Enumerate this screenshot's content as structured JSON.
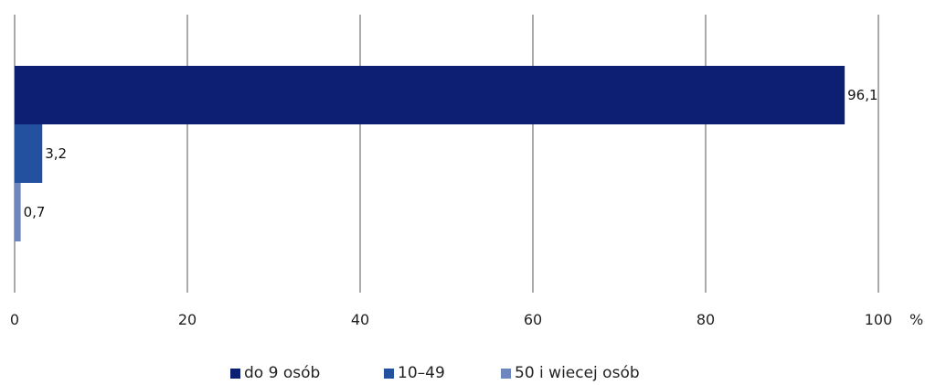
{
  "chart_data": {
    "type": "bar",
    "orientation": "horizontal",
    "title": "",
    "xlabel": "",
    "ylabel": "",
    "unit": "%",
    "xlim": [
      0,
      100
    ],
    "xticks": [
      "0",
      "20",
      "40",
      "60",
      "80",
      "100"
    ],
    "grid": true,
    "legend_position": "bottom",
    "series": [
      {
        "name": "do 9 osób",
        "value": 96.1,
        "label": "96,1",
        "color": "#0d1f73"
      },
      {
        "name": "10–49",
        "value": 3.2,
        "label": "3,2",
        "color": "#2450a0"
      },
      {
        "name": "50 i wiecej osób",
        "value": 0.7,
        "label": "0,7",
        "color": "#6d86bd"
      }
    ]
  }
}
